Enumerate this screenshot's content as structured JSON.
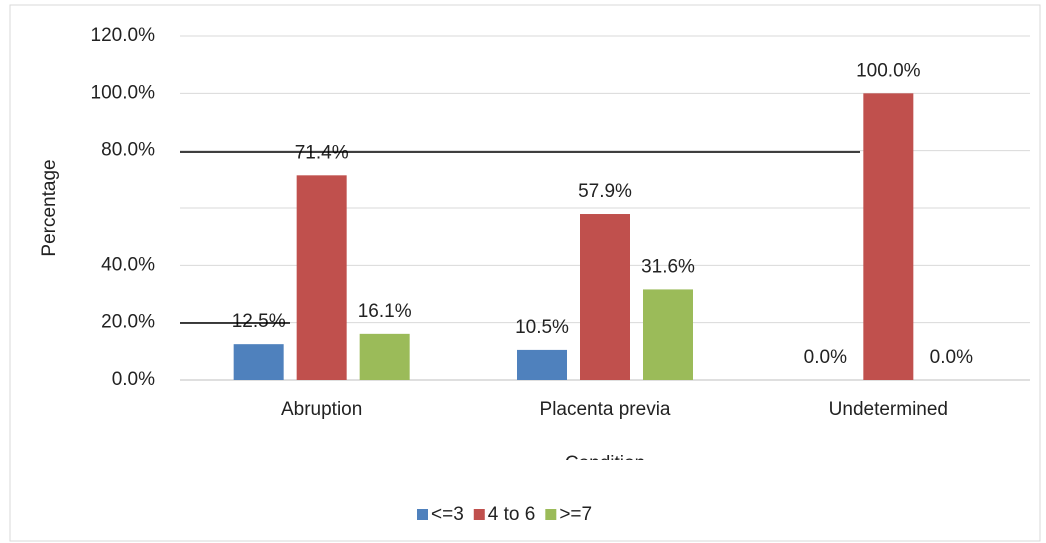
{
  "chart_data": {
    "type": "bar",
    "xlabel": "Condition",
    "ylabel": "Percentage",
    "categories": [
      "Abruption",
      "Placenta previa",
      "Undetermined"
    ],
    "series": [
      {
        "name": "<=3",
        "color": "#4f81bd",
        "values": [
          12.5,
          10.5,
          0
        ],
        "value_labels": [
          "12.5%",
          "10.5%",
          "0.0%"
        ]
      },
      {
        "name": "4 to 6",
        "color": "#c0504d",
        "values": [
          71.4,
          57.9,
          100
        ],
        "value_labels": [
          "71.4%",
          "57.9%",
          "100.0%"
        ]
      },
      {
        "name": ">=7",
        "color": "#9bbb59",
        "values": [
          16.1,
          31.6,
          0
        ],
        "value_labels": [
          "16.1%",
          "31.6%",
          "0.0%"
        ]
      }
    ],
    "ylim": [
      0,
      120
    ],
    "yticks": [
      {
        "value": 0,
        "label": "0.0%"
      },
      {
        "value": 20,
        "label": "20.0%"
      },
      {
        "value": 40,
        "label": "40.0%"
      },
      {
        "value": 60
      },
      {
        "value": 80,
        "label": "80.0%"
      },
      {
        "value": 100,
        "label": "100.0%"
      },
      {
        "value": 120,
        "label": "120.0%"
      }
    ],
    "grid": true,
    "legend": "bottom"
  }
}
